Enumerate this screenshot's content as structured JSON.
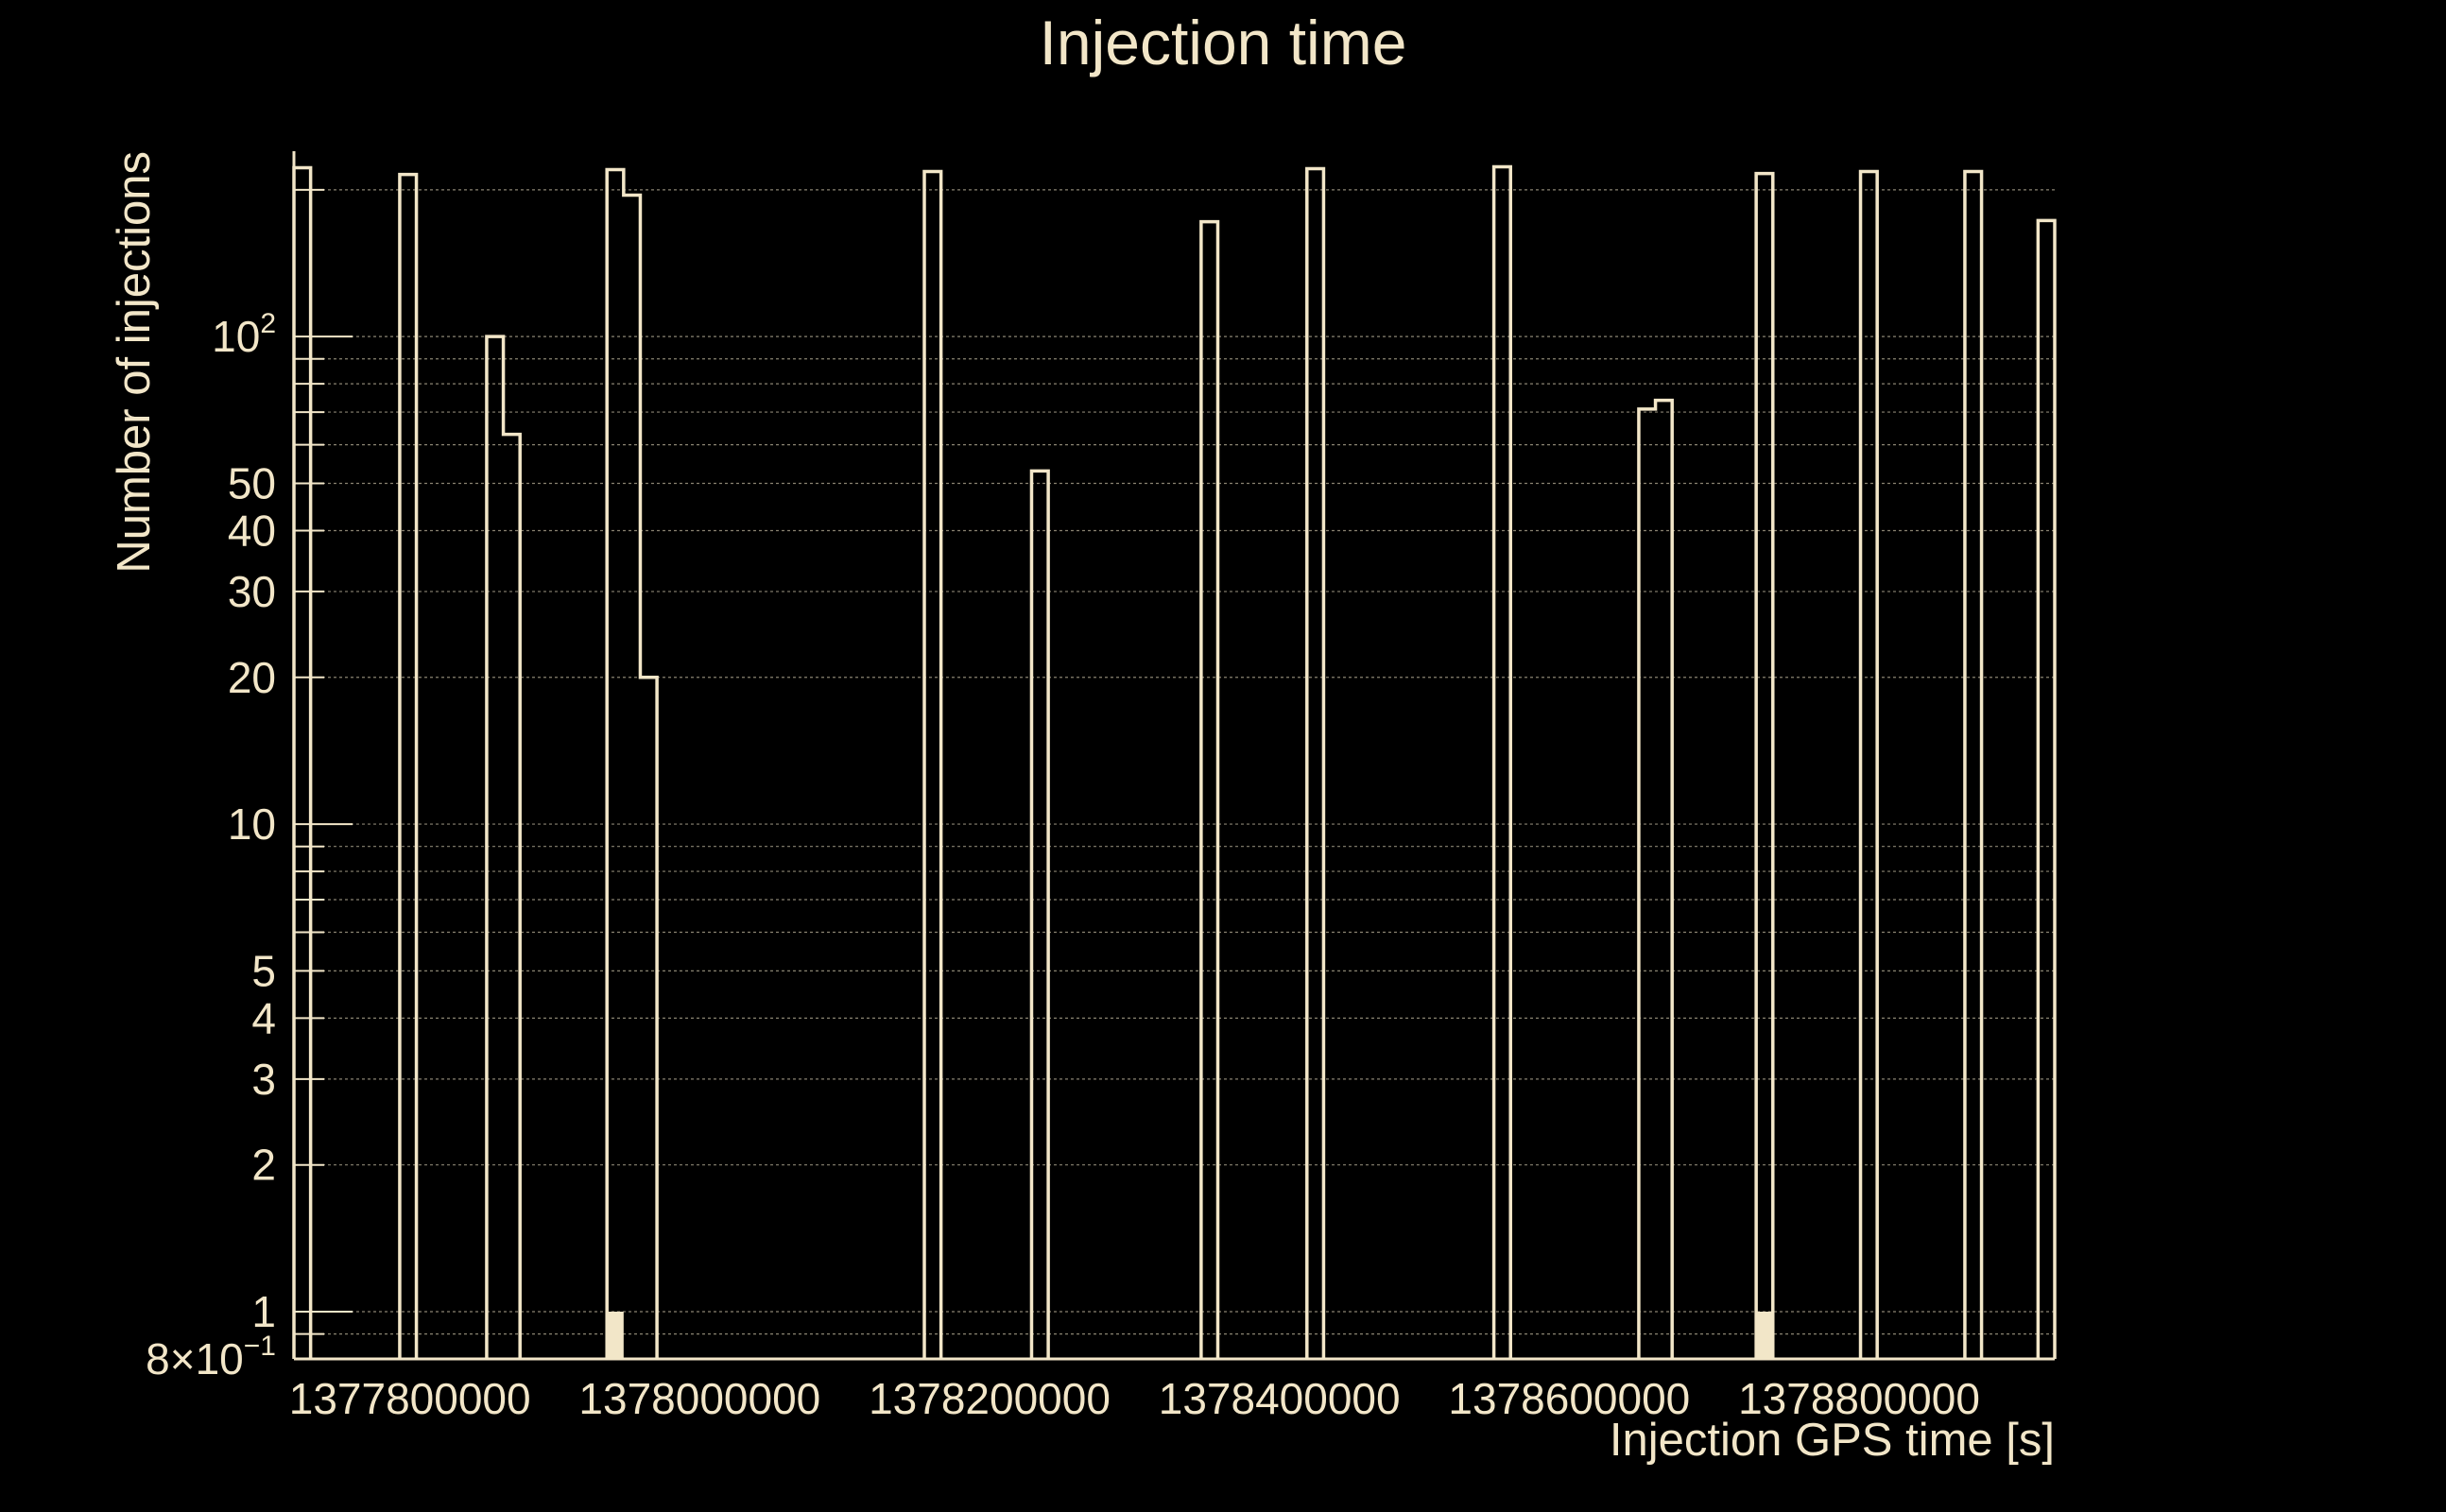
{
  "colors": {
    "background": "#000000",
    "foreground": "#f2e6c8",
    "grid": "#8a8472"
  },
  "chart_data": {
    "type": "histogram",
    "title": "Injection time",
    "xlabel": "Injection GPS time [s]",
    "ylabel": "Number of injections",
    "xscale": "linear",
    "yscale": "log",
    "xlim": [
      1377720000,
      1378935000
    ],
    "ylim": [
      0.8,
      240
    ],
    "grid": true,
    "x_ticks": [
      1377800000,
      1378000000,
      1378200000,
      1378400000,
      1378600000,
      1378800000
    ],
    "x_tick_labels": [
      "1377800000",
      "1378000000",
      "1378200000",
      "1378400000",
      "1378600000",
      "1378800000"
    ],
    "y_ticks": [
      0.8,
      1,
      2,
      3,
      4,
      5,
      10,
      20,
      30,
      40,
      50,
      100
    ],
    "y_tick_labels": [
      {
        "base": "8×10",
        "exp": "−1"
      },
      {
        "base": "1",
        "exp": ""
      },
      {
        "base": "2",
        "exp": ""
      },
      {
        "base": "3",
        "exp": ""
      },
      {
        "base": "4",
        "exp": ""
      },
      {
        "base": "5",
        "exp": ""
      },
      {
        "base": "10",
        "exp": ""
      },
      {
        "base": "20",
        "exp": ""
      },
      {
        "base": "30",
        "exp": ""
      },
      {
        "base": "40",
        "exp": ""
      },
      {
        "base": "50",
        "exp": ""
      },
      {
        "base": "10",
        "exp": "2"
      }
    ],
    "bins": [
      {
        "x0": 1377720000,
        "x1": 1377731500,
        "count": 222
      },
      {
        "x0": 1377793000,
        "x1": 1377804500,
        "count": 215
      },
      {
        "x0": 1377853000,
        "x1": 1377864500,
        "count": 100
      },
      {
        "x0": 1377864500,
        "x1": 1377876000,
        "count": 63
      },
      {
        "x0": 1377936000,
        "x1": 1377947500,
        "count": 220
      },
      {
        "x0": 1377947500,
        "x1": 1377959000,
        "count": 195
      },
      {
        "x0": 1377959000,
        "x1": 1377970500,
        "count": 20
      },
      {
        "x0": 1378155000,
        "x1": 1378166500,
        "count": 218
      },
      {
        "x0": 1378229000,
        "x1": 1378240500,
        "count": 53
      },
      {
        "x0": 1378346000,
        "x1": 1378357500,
        "count": 172
      },
      {
        "x0": 1378419000,
        "x1": 1378430500,
        "count": 221
      },
      {
        "x0": 1378548000,
        "x1": 1378559500,
        "count": 223
      },
      {
        "x0": 1378648000,
        "x1": 1378659500,
        "count": 71
      },
      {
        "x0": 1378659500,
        "x1": 1378671000,
        "count": 74
      },
      {
        "x0": 1378729000,
        "x1": 1378740500,
        "count": 216
      },
      {
        "x0": 1378801000,
        "x1": 1378812500,
        "count": 218
      },
      {
        "x0": 1378873000,
        "x1": 1378884500,
        "count": 218
      },
      {
        "x0": 1378923500,
        "x1": 1378935000,
        "count": 173
      }
    ],
    "filled_bins": [
      {
        "x0": 1377936000,
        "x1": 1377947500,
        "count": 1
      },
      {
        "x0": 1378729000,
        "x1": 1378740500,
        "count": 1
      }
    ]
  }
}
